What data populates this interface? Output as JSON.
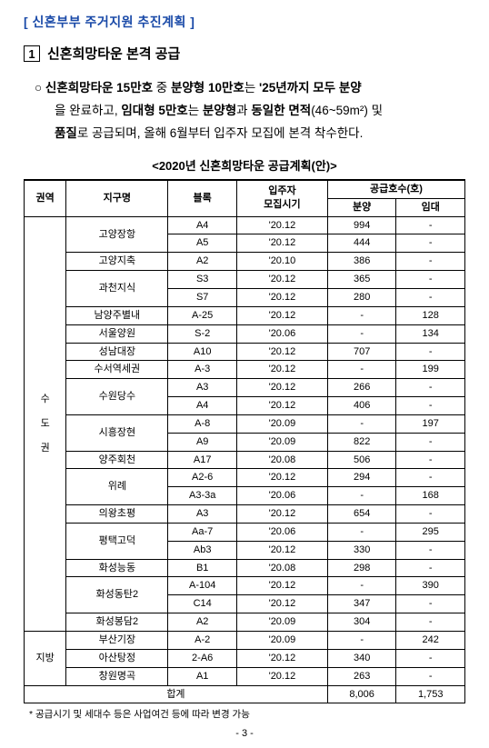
{
  "bracketTitle": "[ 신혼부부 주거지원 추진계획 ]",
  "section": {
    "num": "1",
    "title": "신혼희망타운 본격 공급"
  },
  "body": {
    "line1": {
      "prefix": "○  ",
      "b1": "신혼희망타운 15만호",
      "t1": " 중 ",
      "b2": "분양형 10만호",
      "t2": "는 ",
      "b3": "'25년까지 모두 분양"
    },
    "line2": {
      "t1": "을 완료하고, ",
      "b1": "임대형 5만호",
      "t2": "는 ",
      "b2": "분양형",
      "t3": "과 ",
      "b3": "동일한 면적",
      "t4": "(46~59m²) 및"
    },
    "line3": {
      "b1": "품질",
      "t1": "로 공급되며, 올해 6월부터 입주자 모집에 본격 착수한다."
    }
  },
  "tableTitle": "<2020년  신혼희망타운 공급계획(안)>",
  "headers": {
    "region": "권역",
    "district": "지구명",
    "block": "블록",
    "timing": "입주자\n모집시기",
    "supplyGroup": "공급호수(호)",
    "sale": "분양",
    "rent": "임대"
  },
  "regions": {
    "metro": "수\n도\n권",
    "local": "지방"
  },
  "rows": [
    {
      "region": "metro",
      "district": "고양장항",
      "districtSpan": 2,
      "block": "A4",
      "timing": "'20.12",
      "sale": "994",
      "rent": "-"
    },
    {
      "region": "metro",
      "district": "",
      "block": "A5",
      "timing": "'20.12",
      "sale": "444",
      "rent": "-"
    },
    {
      "region": "metro",
      "district": "고양지축",
      "districtSpan": 1,
      "block": "A2",
      "timing": "'20.10",
      "sale": "386",
      "rent": "-"
    },
    {
      "region": "metro",
      "district": "과천지식",
      "districtSpan": 2,
      "block": "S3",
      "timing": "'20.12",
      "sale": "365",
      "rent": "-"
    },
    {
      "region": "metro",
      "district": "",
      "block": "S7",
      "timing": "'20.12",
      "sale": "280",
      "rent": "-"
    },
    {
      "region": "metro",
      "district": "남양주별내",
      "districtSpan": 1,
      "block": "A-25",
      "timing": "'20.12",
      "sale": "-",
      "rent": "128"
    },
    {
      "region": "metro",
      "district": "서울양원",
      "districtSpan": 1,
      "block": "S-2",
      "timing": "'20.06",
      "sale": "-",
      "rent": "134"
    },
    {
      "region": "metro",
      "district": "성남대장",
      "districtSpan": 1,
      "block": "A10",
      "timing": "'20.12",
      "sale": "707",
      "rent": "-"
    },
    {
      "region": "metro",
      "district": "수서역세권",
      "districtSpan": 1,
      "block": "A-3",
      "timing": "'20.12",
      "sale": "-",
      "rent": "199"
    },
    {
      "region": "metro",
      "district": "수원당수",
      "districtSpan": 2,
      "block": "A3",
      "timing": "'20.12",
      "sale": "266",
      "rent": "-"
    },
    {
      "region": "metro",
      "district": "",
      "block": "A4",
      "timing": "'20.12",
      "sale": "406",
      "rent": "-"
    },
    {
      "region": "metro",
      "district": "시흥장현",
      "districtSpan": 2,
      "block": "A-8",
      "timing": "'20.09",
      "sale": "-",
      "rent": "197"
    },
    {
      "region": "metro",
      "district": "",
      "block": "A9",
      "timing": "'20.09",
      "sale": "822",
      "rent": "-"
    },
    {
      "region": "metro",
      "district": "양주회천",
      "districtSpan": 1,
      "block": "A17",
      "timing": "'20.08",
      "sale": "506",
      "rent": "-"
    },
    {
      "region": "metro",
      "district": "위례",
      "districtSpan": 2,
      "block": "A2-6",
      "timing": "'20.12",
      "sale": "294",
      "rent": "-"
    },
    {
      "region": "metro",
      "district": "",
      "block": "A3-3a",
      "timing": "'20.06",
      "sale": "-",
      "rent": "168"
    },
    {
      "region": "metro",
      "district": "의왕초평",
      "districtSpan": 1,
      "block": "A3",
      "timing": "'20.12",
      "sale": "654",
      "rent": "-"
    },
    {
      "region": "metro",
      "district": "평택고덕",
      "districtSpan": 2,
      "block": "Aa-7",
      "timing": "'20.06",
      "sale": "-",
      "rent": "295"
    },
    {
      "region": "metro",
      "district": "",
      "block": "Ab3",
      "timing": "'20.12",
      "sale": "330",
      "rent": "-"
    },
    {
      "region": "metro",
      "district": "화성능동",
      "districtSpan": 1,
      "block": "B1",
      "timing": "'20.08",
      "sale": "298",
      "rent": "-"
    },
    {
      "region": "metro",
      "district": "화성동탄2",
      "districtSpan": 2,
      "block": "A-104",
      "timing": "'20.12",
      "sale": "-",
      "rent": "390"
    },
    {
      "region": "metro",
      "district": "",
      "block": "C14",
      "timing": "'20.12",
      "sale": "347",
      "rent": "-"
    },
    {
      "region": "metro",
      "district": "화성봉담2",
      "districtSpan": 1,
      "block": "A2",
      "timing": "'20.09",
      "sale": "304",
      "rent": "-"
    },
    {
      "region": "local",
      "district": "부산기장",
      "districtSpan": 1,
      "block": "A-2",
      "timing": "'20.09",
      "sale": "-",
      "rent": "242"
    },
    {
      "region": "local",
      "district": "아산탕정",
      "districtSpan": 1,
      "block": "2-A6",
      "timing": "'20.12",
      "sale": "340",
      "rent": "-"
    },
    {
      "region": "local",
      "district": "창원명곡",
      "districtSpan": 1,
      "block": "A1",
      "timing": "'20.12",
      "sale": "263",
      "rent": "-"
    }
  ],
  "sum": {
    "label": "합계",
    "sale": "8,006",
    "rent": "1,753"
  },
  "note": "* 공급시기 및 세대수 등은 사업여건 등에 따라 변경 가능",
  "pageNum": "- 3 -"
}
